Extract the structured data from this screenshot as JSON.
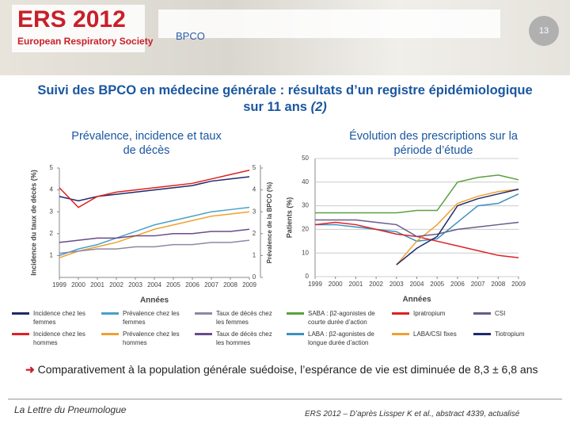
{
  "header": {
    "logo": "ERS 2012",
    "society": "European Respiratory Society",
    "section": "BPCO",
    "page": "13"
  },
  "title": "Suivi des BPCO en médecine générale : résultats d’un registre épidémiologique sur 11 ans",
  "title_ref": "(2)",
  "chart_data": [
    {
      "type": "line",
      "title": "Prévalence, incidence et taux de décès",
      "y_label": "Incidence du taux de décès (%)",
      "y2_label": "Prévalence de la BPCO (%)",
      "x_label": "Années",
      "x": [
        1999,
        2000,
        2001,
        2002,
        2003,
        2004,
        2005,
        2006,
        2007,
        2008,
        2009
      ],
      "xlim": [
        1999,
        2009
      ],
      "ylim": [
        0,
        5
      ],
      "yticks": [
        1,
        2,
        3,
        4,
        5
      ],
      "y2lim": [
        0,
        5
      ],
      "y2ticks": [
        0,
        1,
        2,
        3,
        4,
        5
      ],
      "series": [
        {
          "name": "Incidence chez les femmes",
          "color": "#1f2a6b",
          "values": [
            3.7,
            3.5,
            3.7,
            3.8,
            3.9,
            4.0,
            4.1,
            4.2,
            4.4,
            4.5,
            4.6
          ]
        },
        {
          "name": "Incidence chez les hommes",
          "color": "#e02020",
          "values": [
            4.1,
            3.2,
            3.7,
            3.9,
            4.0,
            4.1,
            4.2,
            4.3,
            4.5,
            4.7,
            4.9
          ]
        },
        {
          "name": "Prévalence chez les femmes",
          "color": "#4aa0c8",
          "axis": "y2",
          "values": [
            1.0,
            1.3,
            1.5,
            1.8,
            2.1,
            2.4,
            2.6,
            2.8,
            3.0,
            3.1,
            3.2
          ]
        },
        {
          "name": "Prévalence chez les hommes",
          "color": "#f0a030",
          "axis": "y2",
          "values": [
            0.9,
            1.2,
            1.4,
            1.6,
            1.9,
            2.2,
            2.4,
            2.6,
            2.8,
            2.9,
            3.0
          ]
        },
        {
          "name": "Taux de décès chez les femmes",
          "color": "#8a8aa6",
          "values": [
            1.1,
            1.2,
            1.3,
            1.3,
            1.4,
            1.4,
            1.5,
            1.5,
            1.6,
            1.6,
            1.7
          ]
        },
        {
          "name": "Taux de décès chez les hommes",
          "color": "#6a4a8a",
          "values": [
            1.6,
            1.7,
            1.8,
            1.8,
            1.9,
            1.9,
            2.0,
            2.0,
            2.1,
            2.1,
            2.2
          ]
        }
      ]
    },
    {
      "type": "line",
      "title": "Évolution des prescriptions sur la période d’étude",
      "y_label": "Patients (%)",
      "x_label": "Années",
      "x": [
        1999,
        2000,
        2001,
        2002,
        2003,
        2004,
        2005,
        2006,
        2007,
        2008,
        2009
      ],
      "xlim": [
        1999,
        2009
      ],
      "ylim": [
        0,
        50
      ],
      "yticks": [
        0,
        10,
        20,
        30,
        40,
        50
      ],
      "grid": true,
      "series": [
        {
          "name": "SABA : β2-agonistes de courte durée d’action",
          "color": "#5aa040",
          "values": [
            27,
            27,
            27,
            27,
            27,
            28,
            28,
            40,
            42,
            43,
            41
          ]
        },
        {
          "name": "LABA : β2-agonistes de longue durée d’action",
          "color": "#3a90c0",
          "values": [
            22,
            22,
            21,
            20,
            19,
            15,
            16,
            23,
            30,
            31,
            35
          ]
        },
        {
          "name": "Ipratropium",
          "color": "#e02020",
          "values": [
            22,
            23,
            22,
            20,
            18,
            17,
            15,
            13,
            11,
            9,
            8
          ]
        },
        {
          "name": "LABA/CSI fixes",
          "color": "#f0a030",
          "values": [
            null,
            null,
            null,
            null,
            5,
            15,
            22,
            31,
            34,
            36,
            37
          ]
        },
        {
          "name": "CSI",
          "color": "#6a5a8a",
          "values": [
            24,
            24,
            24,
            23,
            22,
            17,
            18,
            20,
            21,
            22,
            23
          ]
        },
        {
          "name": "Tiotropium",
          "color": "#1f2a6b",
          "values": [
            null,
            null,
            null,
            null,
            5,
            12,
            17,
            30,
            33,
            35,
            37
          ]
        }
      ]
    }
  ],
  "conclusion": "Comparativement à la population générale suédoise, l’espérance de vie est diminuée de 8,3 ± 6,8 ans",
  "footer": {
    "left": "La Lettre du Pneumologue",
    "right": "ERS 2012 – D’après Lissper K et al., abstract 4339, actualisé"
  }
}
